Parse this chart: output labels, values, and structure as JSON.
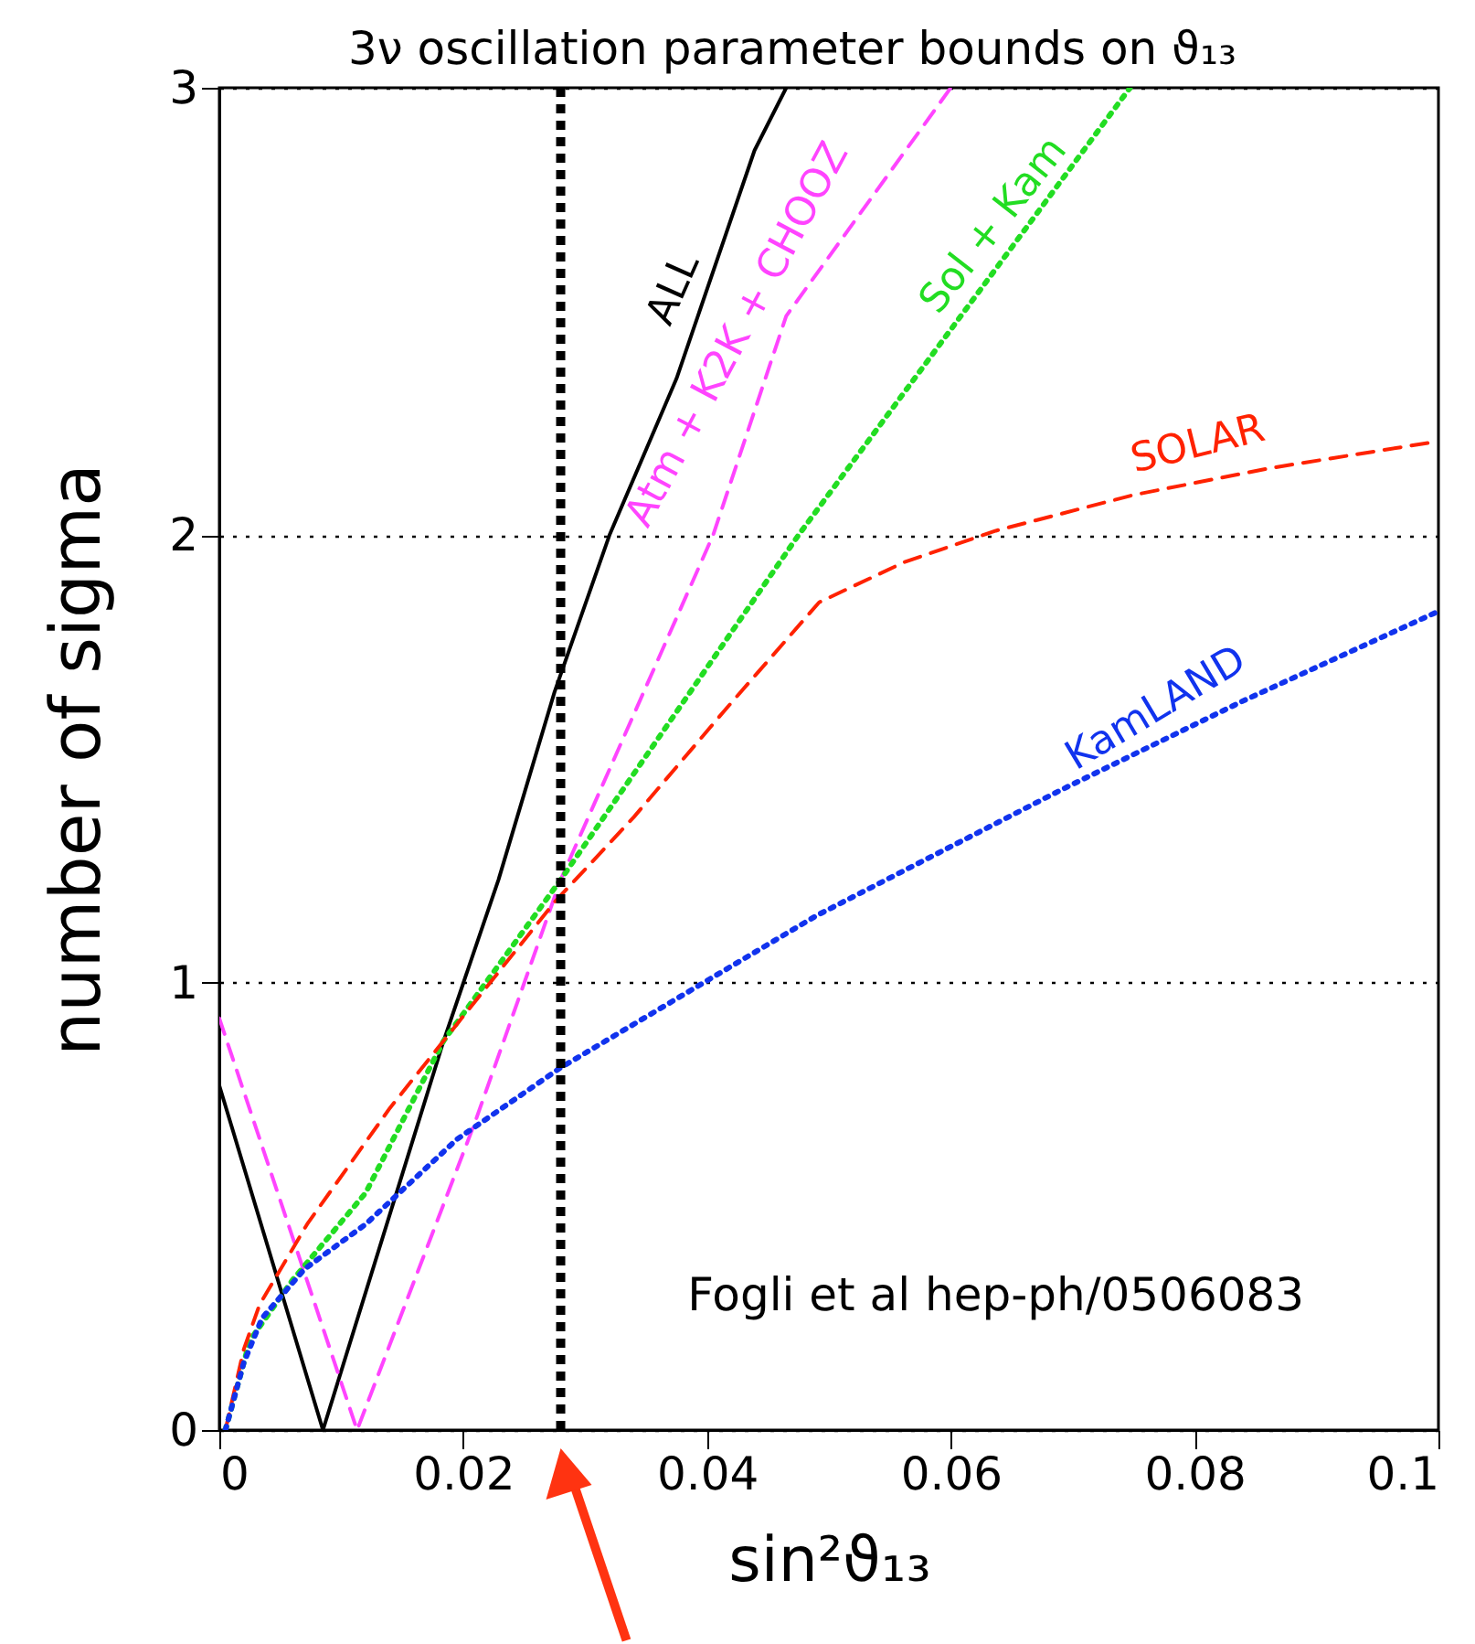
{
  "chart_data": {
    "type": "line",
    "title": "3ν oscillation parameter bounds on ϑ₁₃",
    "xlabel": "sin²ϑ₁₃",
    "ylabel": "number of sigma",
    "xlim": [
      0,
      0.1
    ],
    "xticks": [
      0,
      0.02,
      0.04,
      0.06,
      0.08,
      {
        "value": 0.1,
        "label": "0.1"
      }
    ],
    "ylim": [
      0,
      3
    ],
    "yticks": [
      0,
      1,
      2,
      3
    ],
    "grid": "y",
    "series": [
      {
        "name": "ALL",
        "color": "#000000",
        "line_style": "solid",
        "x": [
          0,
          0.0085,
          0.0184,
          0.0229,
          0.0275,
          0.032,
          0.0375,
          0.0439,
          0.0465
        ],
        "values": [
          0.77,
          0,
          0.87,
          1.23,
          1.65,
          2.0,
          2.35,
          2.86,
          3.0
        ]
      },
      {
        "name": "Atm + K2K + CHOOZ",
        "color": "#ff44ff",
        "line_style": "dashed",
        "x": [
          0,
          0.0113,
          0.021,
          0.028,
          0.0405,
          0.0465,
          0.06
        ],
        "values": [
          0.92,
          0,
          0.69,
          1.23,
          2.0,
          2.49,
          3.0
        ]
      },
      {
        "name": "Sol + Kam",
        "color": "#22dd22",
        "line_style": "dotted",
        "x": [
          0.0005,
          0.0025,
          0.006,
          0.012,
          0.0184,
          0.028,
          0.0475,
          0.0747
        ],
        "values": [
          0,
          0.2,
          0.335,
          0.53,
          0.87,
          1.23,
          2.0,
          3.0
        ]
      },
      {
        "name": "SOLAR",
        "color": "#ff2200",
        "line_style": "dashed",
        "x": [
          0.0005,
          0.002,
          0.0033,
          0.0072,
          0.014,
          0.0184,
          0.0275,
          0.034,
          0.0415,
          0.0492,
          0.0562,
          0.0637,
          0.075,
          0.0862,
          0.1
        ],
        "values": [
          0,
          0.18,
          0.28,
          0.46,
          0.72,
          0.87,
          1.18,
          1.37,
          1.61,
          1.85,
          1.94,
          2.01,
          2.09,
          2.15,
          2.21
        ]
      },
      {
        "name": "KamLAND",
        "color": "#1133ee",
        "line_style": "dotted",
        "x": [
          0.0005,
          0.002,
          0.0035,
          0.007,
          0.012,
          0.0195,
          0.028,
          0.049,
          0.069,
          0.084,
          0.1
        ],
        "values": [
          0,
          0.15,
          0.25,
          0.36,
          0.46,
          0.65,
          0.81,
          1.15,
          1.43,
          1.63,
          1.83
        ]
      }
    ],
    "ref_lines": [
      {
        "axis": "x",
        "value": 0.028,
        "color": "#000000",
        "line_style": "dotted"
      }
    ],
    "annotations": [
      "Fogli et al  hep-ph/0506083"
    ]
  }
}
